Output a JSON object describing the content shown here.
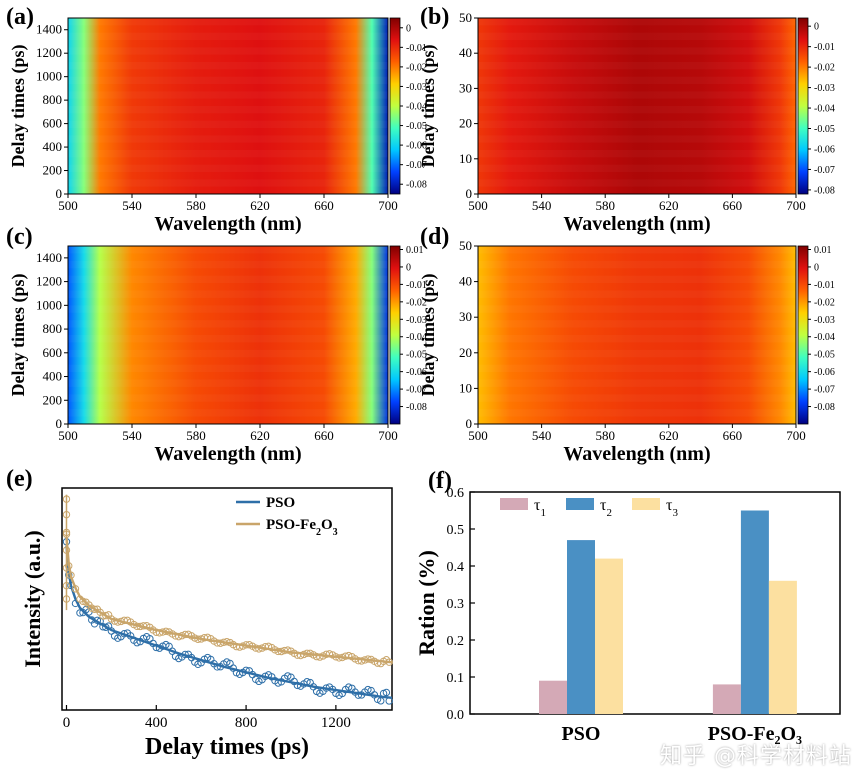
{
  "watermark": "知乎 @科学材料站",
  "chart_data": [
    {
      "panel": "(a)",
      "type": "heatmap",
      "xlabel": "Wavelength (nm)",
      "ylabel": "Delay times (ps)",
      "xlim": [
        500,
        700
      ],
      "ylim": [
        0,
        1500
      ],
      "xticks": [
        "500",
        "540",
        "580",
        "620",
        "660",
        "700"
      ],
      "yticks": [
        "0",
        "200",
        "400",
        "600",
        "800",
        "1000",
        "1200",
        "1400"
      ],
      "colorbar_range": [
        -0.085,
        0.005
      ],
      "colorbar_ticks": [
        "0",
        "-0.01",
        "-0.02",
        "-0.03",
        "-0.04",
        "-0.05",
        "-0.06",
        "-0.07",
        "-0.08"
      ],
      "colormap": [
        "#000080",
        "#0040ff",
        "#00c8ff",
        "#40ffc0",
        "#c0ff40",
        "#ffd000",
        "#ff6000",
        "#e01010",
        "#800000"
      ],
      "profile": [
        {
          "wavelength": 500,
          "signal": -0.06
        },
        {
          "wavelength": 510,
          "signal": -0.045
        },
        {
          "wavelength": 520,
          "signal": -0.02
        },
        {
          "wavelength": 540,
          "signal": -0.012
        },
        {
          "wavelength": 580,
          "signal": -0.008
        },
        {
          "wavelength": 620,
          "signal": -0.006
        },
        {
          "wavelength": 660,
          "signal": -0.009
        },
        {
          "wavelength": 680,
          "signal": -0.02
        },
        {
          "wavelength": 690,
          "signal": -0.05
        },
        {
          "wavelength": 700,
          "signal": -0.08
        }
      ]
    },
    {
      "panel": "(b)",
      "type": "heatmap",
      "xlabel": "Wavelength (nm)",
      "ylabel": "Delay times (ps)",
      "xlim": [
        500,
        700
      ],
      "ylim": [
        0,
        50
      ],
      "xticks": [
        "500",
        "540",
        "580",
        "620",
        "660",
        "700"
      ],
      "yticks": [
        "0",
        "10",
        "20",
        "30",
        "40",
        "50"
      ],
      "colorbar_range": [
        -0.082,
        0.004
      ],
      "colorbar_ticks": [
        "0",
        "-0.01",
        "-0.02",
        "-0.03",
        "-0.04",
        "-0.05",
        "-0.06",
        "-0.07",
        "-0.08"
      ],
      "colormap": [
        "#000080",
        "#0040ff",
        "#00c8ff",
        "#40ffc0",
        "#c0ff40",
        "#ffd000",
        "#ff6000",
        "#e01010",
        "#800000"
      ],
      "profile": [
        {
          "wavelength": 500,
          "signal": -0.012
        },
        {
          "wavelength": 520,
          "signal": -0.008
        },
        {
          "wavelength": 560,
          "signal": -0.004
        },
        {
          "wavelength": 600,
          "signal": -0.001
        },
        {
          "wavelength": 640,
          "signal": -0.002
        },
        {
          "wavelength": 670,
          "signal": -0.005
        },
        {
          "wavelength": 690,
          "signal": -0.012
        },
        {
          "wavelength": 700,
          "signal": -0.018
        }
      ]
    },
    {
      "panel": "(c)",
      "type": "heatmap",
      "xlabel": "Wavelength (nm)",
      "ylabel": "Delay times (ps)",
      "xlim": [
        500,
        700
      ],
      "ylim": [
        0,
        1500
      ],
      "xticks": [
        "500",
        "540",
        "580",
        "620",
        "660",
        "700"
      ],
      "yticks": [
        "0",
        "200",
        "400",
        "600",
        "800",
        "1000",
        "1200",
        "1400"
      ],
      "colorbar_range": [
        -0.09,
        0.012
      ],
      "colorbar_ticks": [
        "0.01",
        "0",
        "-0.01",
        "-0.02",
        "-0.03",
        "-0.04",
        "-0.05",
        "-0.06",
        "-0.07",
        "-0.08"
      ],
      "colormap": [
        "#000080",
        "#0040ff",
        "#00c8ff",
        "#40ffc0",
        "#c0ff40",
        "#ffd000",
        "#ff6000",
        "#e01010",
        "#800000"
      ],
      "profile": [
        {
          "wavelength": 500,
          "signal": -0.075
        },
        {
          "wavelength": 510,
          "signal": -0.06
        },
        {
          "wavelength": 520,
          "signal": -0.04
        },
        {
          "wavelength": 540,
          "signal": -0.018
        },
        {
          "wavelength": 580,
          "signal": -0.01
        },
        {
          "wavelength": 620,
          "signal": -0.006
        },
        {
          "wavelength": 660,
          "signal": -0.01
        },
        {
          "wavelength": 680,
          "signal": -0.022
        },
        {
          "wavelength": 690,
          "signal": -0.045
        },
        {
          "wavelength": 700,
          "signal": -0.08
        }
      ]
    },
    {
      "panel": "(d)",
      "type": "heatmap",
      "xlabel": "Wavelength (nm)",
      "ylabel": "Delay times (ps)",
      "xlim": [
        500,
        700
      ],
      "ylim": [
        0,
        50
      ],
      "xticks": [
        "500",
        "540",
        "580",
        "620",
        "660",
        "700"
      ],
      "yticks": [
        "0",
        "10",
        "20",
        "30",
        "40",
        "50"
      ],
      "colorbar_range": [
        -0.09,
        0.012
      ],
      "colorbar_ticks": [
        "0.01",
        "0",
        "-0.01",
        "-0.02",
        "-0.03",
        "-0.04",
        "-0.05",
        "-0.06",
        "-0.07",
        "-0.08"
      ],
      "colormap": [
        "#000080",
        "#0040ff",
        "#00c8ff",
        "#40ffc0",
        "#c0ff40",
        "#ffd000",
        "#ff6000",
        "#e01010",
        "#800000"
      ],
      "profile": [
        {
          "wavelength": 500,
          "signal": -0.024
        },
        {
          "wavelength": 520,
          "signal": -0.016
        },
        {
          "wavelength": 560,
          "signal": -0.01
        },
        {
          "wavelength": 600,
          "signal": -0.007
        },
        {
          "wavelength": 640,
          "signal": -0.006
        },
        {
          "wavelength": 670,
          "signal": -0.01
        },
        {
          "wavelength": 690,
          "signal": -0.018
        },
        {
          "wavelength": 700,
          "signal": -0.024
        }
      ]
    },
    {
      "panel": "(e)",
      "type": "line",
      "xlabel": "Delay times (ps)",
      "ylabel": "Intensity (a.u.)",
      "xlim": [
        -20,
        1450
      ],
      "ylim": [
        0,
        1.0
      ],
      "xticks": [
        "0",
        "400",
        "800",
        "1200"
      ],
      "legend_position": "top-right",
      "series": [
        {
          "name": "PSO",
          "color": "#2e6fa8",
          "x": [
            0,
            10,
            20,
            40,
            60,
            100,
            150,
            200,
            300,
            400,
            500,
            600,
            700,
            800,
            900,
            1000,
            1100,
            1200,
            1300,
            1400,
            1450
          ],
          "y": [
            0.74,
            0.62,
            0.56,
            0.5,
            0.46,
            0.42,
            0.39,
            0.36,
            0.325,
            0.29,
            0.255,
            0.225,
            0.195,
            0.17,
            0.145,
            0.125,
            0.105,
            0.09,
            0.075,
            0.06,
            0.055
          ]
        },
        {
          "name": "PSO-Fe2O3",
          "legend_html": "PSO-Fe<sub>2</sub>O<sub>3</sub>",
          "color": "#c9a56a",
          "x": [
            0,
            10,
            20,
            40,
            60,
            100,
            150,
            200,
            300,
            400,
            500,
            600,
            700,
            800,
            900,
            1000,
            1100,
            1200,
            1300,
            1400,
            1450
          ],
          "y": [
            0.78,
            0.66,
            0.6,
            0.55,
            0.51,
            0.47,
            0.44,
            0.41,
            0.385,
            0.36,
            0.34,
            0.32,
            0.305,
            0.29,
            0.275,
            0.26,
            0.25,
            0.24,
            0.23,
            0.22,
            0.215
          ]
        }
      ]
    },
    {
      "panel": "(f)",
      "type": "bar",
      "xlabel": "",
      "ylabel": "Ration (%)",
      "ylim": [
        0,
        0.6
      ],
      "yticks": [
        "0.0",
        "0.1",
        "0.2",
        "0.3",
        "0.4",
        "0.5",
        "0.6"
      ],
      "categories": [
        "PSO",
        "PSO-Fe2O3"
      ],
      "legend_position": "top",
      "series": [
        {
          "name": "τ1",
          "color": "#d4a9b6",
          "values": [
            0.09,
            0.08
          ]
        },
        {
          "name": "τ2",
          "color": "#4a90c4",
          "values": [
            0.47,
            0.55
          ]
        },
        {
          "name": "τ3",
          "color": "#fce0a0",
          "values": [
            0.42,
            0.36
          ]
        }
      ]
    }
  ]
}
